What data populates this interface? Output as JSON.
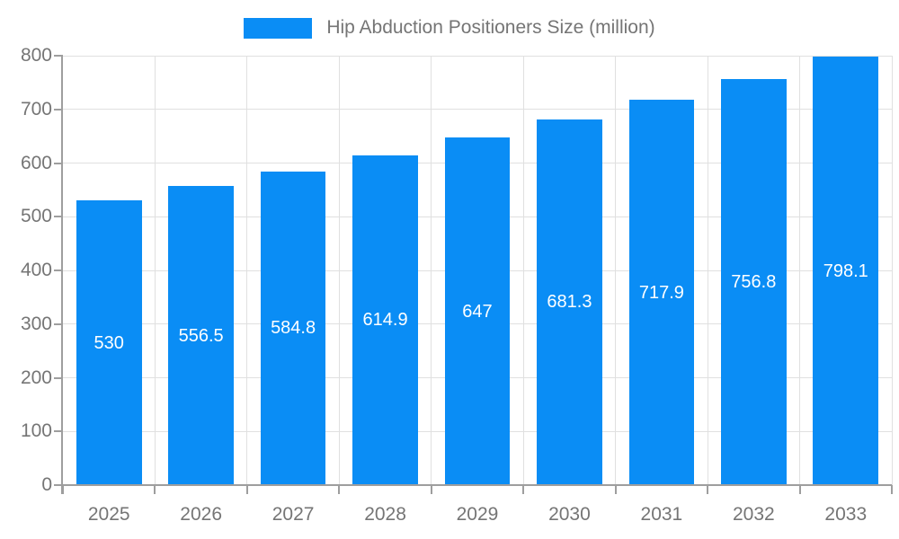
{
  "chart_data": {
    "type": "bar",
    "legend_label": "Hip Abduction Positioners Size (million)",
    "categories": [
      "2025",
      "2026",
      "2027",
      "2028",
      "2029",
      "2030",
      "2031",
      "2032",
      "2033"
    ],
    "values": [
      530,
      556.5,
      584.8,
      614.9,
      647,
      681.3,
      717.9,
      756.8,
      798.1
    ],
    "value_labels": [
      "530",
      "556.5",
      "584.8",
      "614.9",
      "647",
      "681.3",
      "717.9",
      "756.8",
      "798.1"
    ],
    "ylim": [
      0,
      800
    ],
    "ytick_step": 100,
    "ytick_labels": [
      "0",
      "100",
      "200",
      "300",
      "400",
      "500",
      "600",
      "700",
      "800"
    ],
    "grid": "on",
    "legend_position": "top",
    "colors": {
      "bar": "#0A8DF5",
      "grid": "#E0E0E0",
      "axis": "#9E9E9E",
      "text": "#757575",
      "valuelabel": "#FFFFFF",
      "background": "#FFFFFF"
    }
  }
}
